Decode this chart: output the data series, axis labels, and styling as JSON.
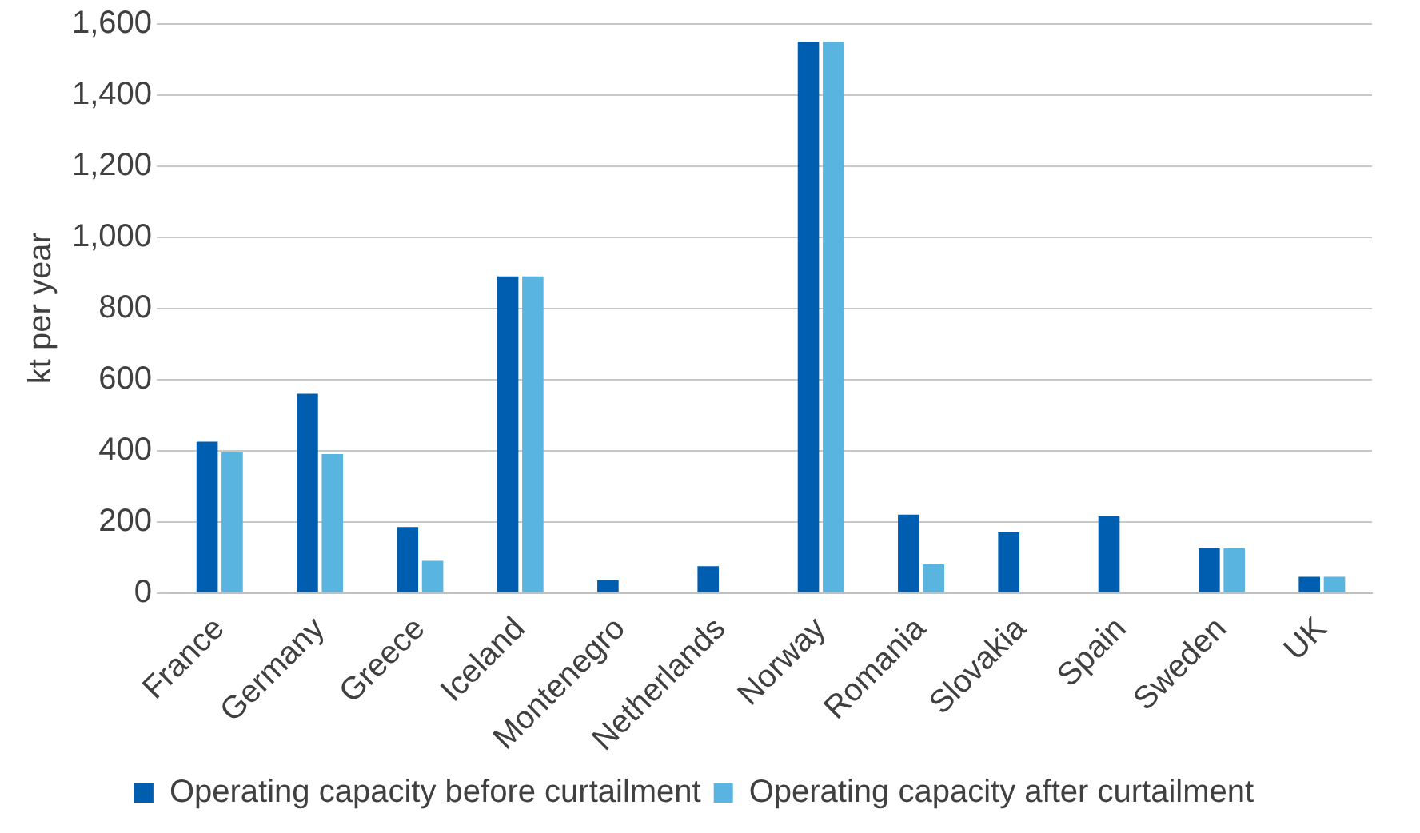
{
  "chart_data": {
    "type": "bar",
    "ylabel": "kt per year",
    "categories": [
      "France",
      "Germany",
      "Greece",
      "Iceland",
      "Montenegro",
      "Netherlands",
      "Norway",
      "Romania",
      "Slovakia",
      "Spain",
      "Sweden",
      "UK"
    ],
    "series": [
      {
        "name": "Operating capacity before curtailment",
        "color": "#005eb0",
        "values": [
          425,
          560,
          185,
          890,
          35,
          75,
          1550,
          220,
          170,
          215,
          125,
          45
        ]
      },
      {
        "name": "Operating capacity after curtailment",
        "color": "#5ab4e0",
        "values": [
          395,
          390,
          90,
          890,
          null,
          null,
          1550,
          80,
          null,
          null,
          125,
          45
        ]
      }
    ],
    "ylim": [
      0,
      1600
    ],
    "yticks": [
      0,
      200,
      400,
      600,
      800,
      {
        "value": 1000,
        "label": "1,000"
      },
      {
        "value": 1200,
        "label": "1,200"
      },
      {
        "value": 1400,
        "label": "1,400"
      },
      {
        "value": 1600,
        "label": "1,600"
      }
    ],
    "grid": "y",
    "legend": "bottom"
  }
}
